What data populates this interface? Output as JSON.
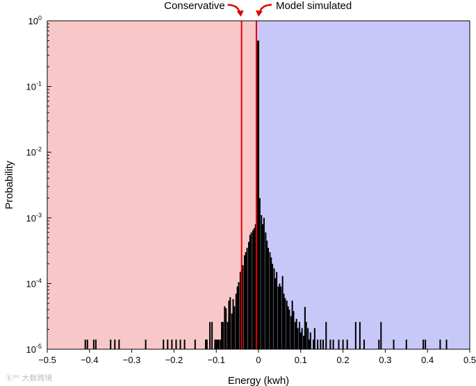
{
  "chart_data": {
    "type": "bar",
    "title": "",
    "xlabel": "Energy (kwh)",
    "ylabel": "Probability",
    "xlim": [
      -0.5,
      0.5
    ],
    "ylim": [
      1e-05,
      1
    ],
    "yscale": "log",
    "grid": false,
    "x_ticks": [
      "−0.5",
      "−0.4",
      "−0.3",
      "−0.2",
      "−0.1",
      "0",
      "0.1",
      "0.2",
      "0.3",
      "0.4",
      "0.5"
    ],
    "y_ticks": [
      {
        "base": "10",
        "exp": "0"
      },
      {
        "base": "10",
        "exp": "-1"
      },
      {
        "base": "10",
        "exp": "-2"
      },
      {
        "base": "10",
        "exp": "-3"
      },
      {
        "base": "10",
        "exp": "-4"
      },
      {
        "base": "10",
        "exp": "-5"
      }
    ],
    "regions": [
      {
        "from": -0.5,
        "to": -0.005,
        "color": "#f8c8c8"
      },
      {
        "from": -0.005,
        "to": 0.5,
        "color": "#c8c8f8"
      }
    ],
    "vlines": [
      {
        "x": -0.04,
        "label": "Conservative",
        "color": "#e00000"
      },
      {
        "x": -0.005,
        "label": "Model simulated",
        "color": "#e00000"
      }
    ],
    "bar_color": "#000000",
    "bin_width": 0.00333,
    "bins": [
      [
        -0.41,
        1.4e-05
      ],
      [
        -0.405,
        1.4e-05
      ],
      [
        -0.39,
        1.4e-05
      ],
      [
        -0.385,
        1.4e-05
      ],
      [
        -0.35,
        1.4e-05
      ],
      [
        -0.34,
        1.4e-05
      ],
      [
        -0.33,
        1.4e-05
      ],
      [
        -0.267,
        1.4e-05
      ],
      [
        -0.225,
        1.4e-05
      ],
      [
        -0.215,
        1.4e-05
      ],
      [
        -0.205,
        1.4e-05
      ],
      [
        -0.195,
        1.4e-05
      ],
      [
        -0.185,
        1.4e-05
      ],
      [
        -0.175,
        1.4e-05
      ],
      [
        -0.15,
        1.4e-05
      ],
      [
        -0.125,
        1.4e-05
      ],
      [
        -0.122,
        1.4e-05
      ],
      [
        -0.115,
        2.6e-05
      ],
      [
        -0.11,
        2.6e-05
      ],
      [
        -0.103,
        1.4e-05
      ],
      [
        -0.1,
        1.4e-05
      ],
      [
        -0.097,
        1.4e-05
      ],
      [
        -0.094,
        1.4e-05
      ],
      [
        -0.09,
        1.4e-05
      ],
      [
        -0.087,
        2.6e-05
      ],
      [
        -0.084,
        2.6e-05
      ],
      [
        -0.08,
        4.5e-05
      ],
      [
        -0.077,
        4.2e-05
      ],
      [
        -0.073,
        2.6e-05
      ],
      [
        -0.07,
        5.5e-05
      ],
      [
        -0.067,
        6.2e-05
      ],
      [
        -0.063,
        3.5e-05
      ],
      [
        -0.06,
        5.8e-05
      ],
      [
        -0.057,
        4.5e-05
      ],
      [
        -0.053,
        7e-05
      ],
      [
        -0.05,
        9e-05
      ],
      [
        -0.047,
        0.000105
      ],
      [
        -0.043,
        0.00015
      ],
      [
        -0.04,
        0.00016
      ],
      [
        -0.037,
        0.00019
      ],
      [
        -0.033,
        0.00027
      ],
      [
        -0.03,
        0.0003
      ],
      [
        -0.027,
        0.00035
      ],
      [
        -0.023,
        0.00043
      ],
      [
        -0.02,
        0.00055
      ],
      [
        -0.017,
        0.0006
      ],
      [
        -0.013,
        0.00065
      ],
      [
        -0.01,
        0.0007
      ],
      [
        -0.007,
        0.0008
      ],
      [
        -0.003,
        0.5
      ],
      [
        0.0,
        0.5
      ],
      [
        0.003,
        0.002
      ],
      [
        0.007,
        0.0011
      ],
      [
        0.01,
        0.0008
      ],
      [
        0.013,
        0.001
      ],
      [
        0.017,
        0.0006
      ],
      [
        0.02,
        0.00045
      ],
      [
        0.023,
        0.00035
      ],
      [
        0.027,
        0.0003
      ],
      [
        0.03,
        0.00025
      ],
      [
        0.033,
        0.0002
      ],
      [
        0.037,
        0.00017
      ],
      [
        0.04,
        0.00012
      ],
      [
        0.043,
        0.00015
      ],
      [
        0.047,
        9e-05
      ],
      [
        0.05,
        0.0001
      ],
      [
        0.053,
        9e-05
      ],
      [
        0.057,
        0.00013
      ],
      [
        0.06,
        7e-05
      ],
      [
        0.063,
        6e-05
      ],
      [
        0.067,
        5.5e-05
      ],
      [
        0.07,
        4.5e-05
      ],
      [
        0.073,
        4e-05
      ],
      [
        0.077,
        3.2e-05
      ],
      [
        0.08,
        5.5e-05
      ],
      [
        0.083,
        3.8e-05
      ],
      [
        0.087,
        2.6e-05
      ],
      [
        0.09,
        2.9e-05
      ],
      [
        0.093,
        2.1e-05
      ],
      [
        0.097,
        2.6e-05
      ],
      [
        0.1,
        1.8e-05
      ],
      [
        0.103,
        2.1e-05
      ],
      [
        0.107,
        1.6e-05
      ],
      [
        0.11,
        4.4e-05
      ],
      [
        0.113,
        2.6e-05
      ],
      [
        0.117,
        2.1e-05
      ],
      [
        0.12,
        1.4e-05
      ],
      [
        0.123,
        1.8e-05
      ],
      [
        0.13,
        1.4e-05
      ],
      [
        0.133,
        2.1e-05
      ],
      [
        0.14,
        1.4e-05
      ],
      [
        0.147,
        1.4e-05
      ],
      [
        0.153,
        1.4e-05
      ],
      [
        0.16,
        2.6e-05
      ],
      [
        0.17,
        1.4e-05
      ],
      [
        0.177,
        1.4e-05
      ],
      [
        0.19,
        1.4e-05
      ],
      [
        0.2,
        1.4e-05
      ],
      [
        0.21,
        1.4e-05
      ],
      [
        0.23,
        2.6e-05
      ],
      [
        0.24,
        2.6e-05
      ],
      [
        0.25,
        1.4e-05
      ],
      [
        0.285,
        1.4e-05
      ],
      [
        0.29,
        2.6e-05
      ],
      [
        0.32,
        1.4e-05
      ],
      [
        0.35,
        1.4e-05
      ],
      [
        0.39,
        1.4e-05
      ],
      [
        0.395,
        1.4e-05
      ],
      [
        0.43,
        1.4e-05
      ],
      [
        0.445,
        1.4e-05
      ]
    ]
  },
  "watermark": "Ⓔ⁰⁰ 大数跨境"
}
